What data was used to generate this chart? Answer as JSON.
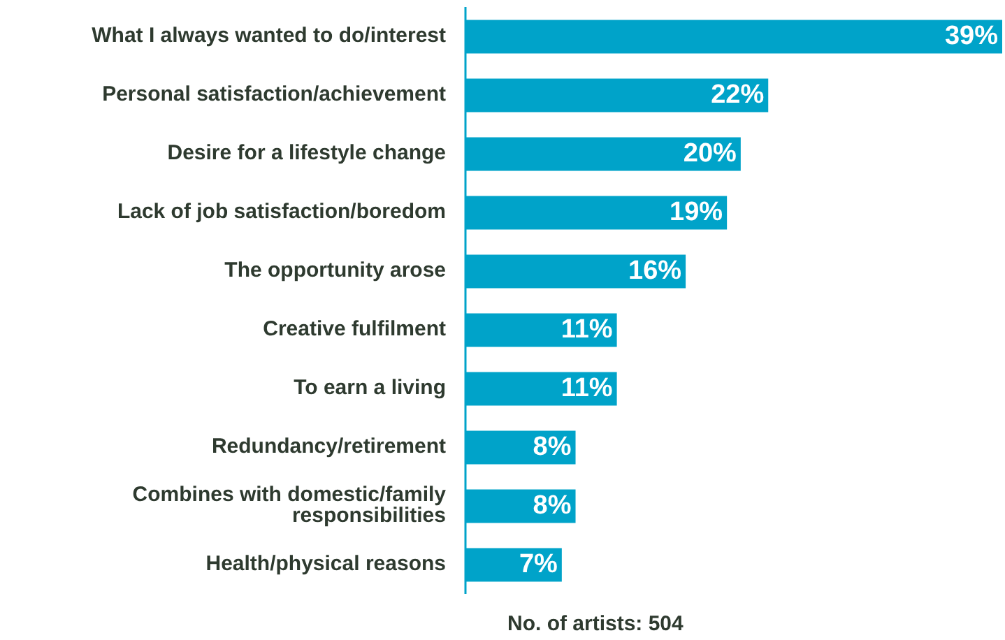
{
  "chart_data": {
    "type": "bar",
    "orientation": "horizontal",
    "categories": [
      "What I always wanted to do/interest",
      "Personal satisfaction/achievement",
      "Desire for a lifestyle change",
      "Lack of job satisfaction/boredom",
      "The opportunity arose",
      "Creative fulfilment",
      "To earn a living",
      "Redundancy/retirement",
      "Combines with domestic/family responsibilities",
      "Health/physical reasons"
    ],
    "values": [
      39,
      22,
      20,
      19,
      16,
      11,
      11,
      8,
      8,
      7
    ],
    "value_labels": [
      "39%",
      "22%",
      "20%",
      "19%",
      "16%",
      "11%",
      "11%",
      "8%",
      "8%",
      "7%"
    ],
    "color": "#00a3c9",
    "annotations": [
      "No. of artists: 504"
    ]
  }
}
